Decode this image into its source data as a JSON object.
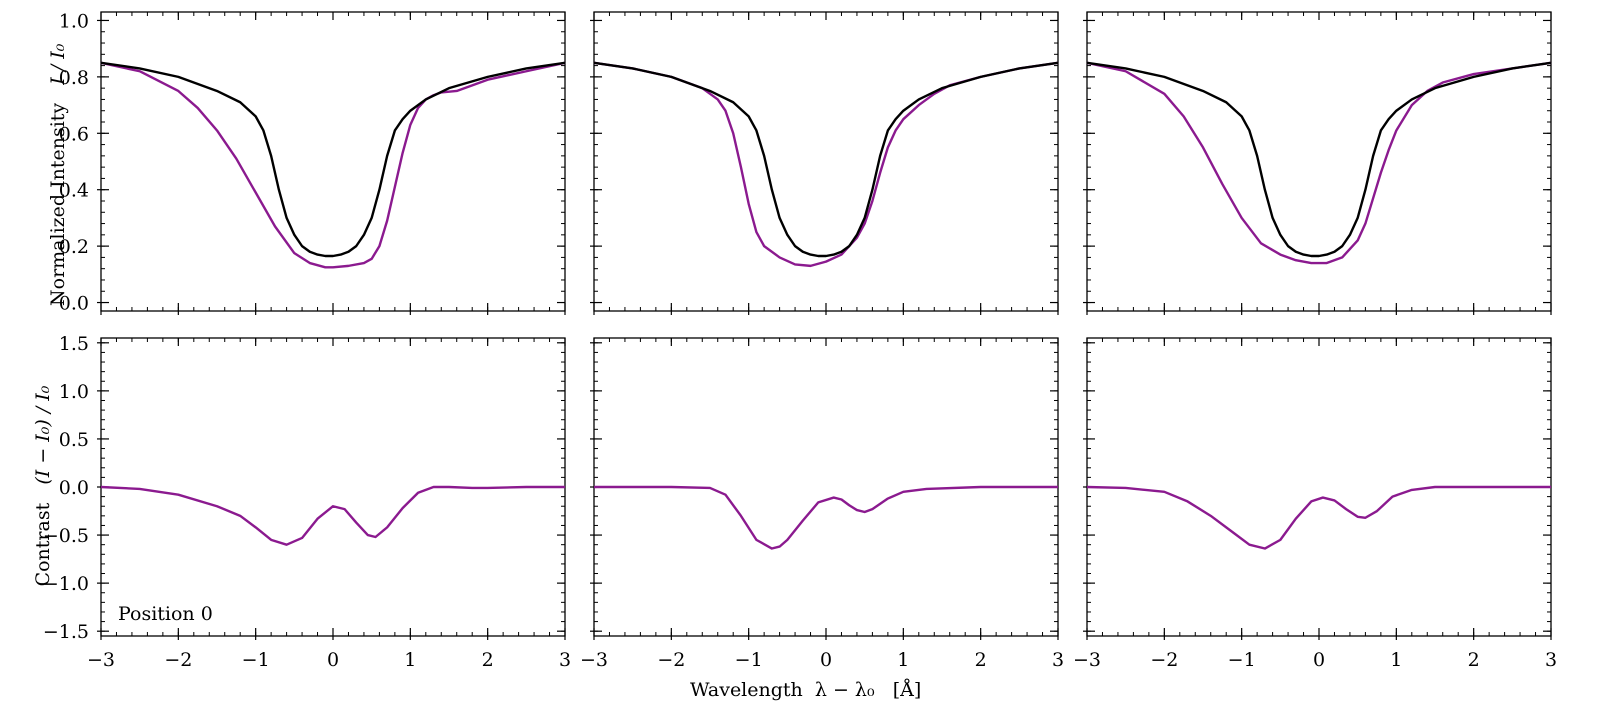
{
  "figure": {
    "top_ylabel_text": "Normalized Intensity",
    "top_ylabel_math": "I / I₀",
    "bottom_ylabel_text": "Contrast",
    "bottom_ylabel_math": "(I − I₀) / I₀",
    "xlabel_text": "Wavelength",
    "xlabel_math": "λ − λ₀",
    "xlabel_unit": "[Å]",
    "annotation": "Position 0"
  },
  "colors": {
    "reference": "#000000",
    "profile": "#8b1a8f"
  },
  "chart_data": {
    "type": "line",
    "x_ticks": [
      "−3",
      "−2",
      "−1",
      "0",
      "1",
      "2",
      "3"
    ],
    "x_tick_values": [
      -3,
      -2,
      -1,
      0,
      1,
      2,
      3
    ],
    "xlim": [
      -3,
      3
    ],
    "top_row": {
      "ylim": [
        -0.03,
        1.03
      ],
      "y_ticks": [
        "0.0",
        "0.2",
        "0.4",
        "0.6",
        "0.8",
        "1.0"
      ],
      "y_tick_values": [
        0.0,
        0.2,
        0.4,
        0.6,
        0.8,
        1.0
      ]
    },
    "bottom_row": {
      "ylim": [
        -1.55,
        1.55
      ],
      "y_ticks": [
        "−1.5",
        "−1.0",
        "−0.5",
        "0.0",
        "0.5",
        "1.0",
        "1.5"
      ],
      "y_tick_values": [
        -1.5,
        -1.0,
        -0.5,
        0.0,
        0.5,
        1.0,
        1.5
      ]
    },
    "reference_profile": {
      "x": [
        -3,
        -2.5,
        -2,
        -1.5,
        -1.2,
        -1,
        -0.9,
        -0.8,
        -0.7,
        -0.6,
        -0.5,
        -0.4,
        -0.3,
        -0.2,
        -0.1,
        0,
        0.1,
        0.2,
        0.3,
        0.4,
        0.5,
        0.6,
        0.7,
        0.8,
        0.9,
        1,
        1.2,
        1.5,
        2,
        2.5,
        3
      ],
      "y": [
        0.85,
        0.83,
        0.8,
        0.75,
        0.71,
        0.66,
        0.61,
        0.52,
        0.4,
        0.3,
        0.24,
        0.2,
        0.18,
        0.17,
        0.165,
        0.165,
        0.17,
        0.18,
        0.2,
        0.24,
        0.3,
        0.4,
        0.52,
        0.61,
        0.65,
        0.68,
        0.72,
        0.76,
        0.8,
        0.83,
        0.85
      ]
    },
    "panels": [
      {
        "intensity": {
          "x": [
            -3,
            -2.5,
            -2,
            -1.75,
            -1.5,
            -1.25,
            -1,
            -0.75,
            -0.5,
            -0.3,
            -0.1,
            0,
            0.2,
            0.4,
            0.5,
            0.6,
            0.7,
            0.8,
            0.9,
            1,
            1.1,
            1.2,
            1.3,
            1.4,
            1.6,
            2,
            2.5,
            3
          ],
          "y": [
            0.85,
            0.82,
            0.75,
            0.69,
            0.61,
            0.51,
            0.39,
            0.27,
            0.175,
            0.14,
            0.125,
            0.125,
            0.13,
            0.14,
            0.155,
            0.2,
            0.29,
            0.41,
            0.53,
            0.63,
            0.69,
            0.72,
            0.735,
            0.745,
            0.75,
            0.79,
            0.82,
            0.85
          ]
        },
        "contrast": {
          "x": [
            -3,
            -2.5,
            -2,
            -1.5,
            -1.2,
            -1,
            -0.8,
            -0.6,
            -0.4,
            -0.2,
            0,
            0.15,
            0.3,
            0.45,
            0.55,
            0.7,
            0.9,
            1.1,
            1.3,
            1.5,
            1.8,
            2,
            2.5,
            3
          ],
          "y": [
            0,
            -0.02,
            -0.08,
            -0.2,
            -0.3,
            -0.42,
            -0.55,
            -0.6,
            -0.53,
            -0.33,
            -0.2,
            -0.23,
            -0.37,
            -0.5,
            -0.52,
            -0.42,
            -0.22,
            -0.06,
            0,
            0,
            -0.01,
            -0.01,
            0,
            0
          ]
        }
      },
      {
        "intensity": {
          "x": [
            -3,
            -2.5,
            -2,
            -1.6,
            -1.4,
            -1.3,
            -1.2,
            -1.1,
            -1,
            -0.9,
            -0.8,
            -0.6,
            -0.4,
            -0.2,
            0,
            0.2,
            0.4,
            0.5,
            0.6,
            0.7,
            0.8,
            0.9,
            1,
            1.2,
            1.4,
            1.6,
            2,
            2.5,
            3
          ],
          "y": [
            0.85,
            0.83,
            0.8,
            0.76,
            0.72,
            0.68,
            0.6,
            0.48,
            0.35,
            0.25,
            0.2,
            0.16,
            0.135,
            0.13,
            0.145,
            0.17,
            0.23,
            0.28,
            0.36,
            0.46,
            0.55,
            0.61,
            0.65,
            0.7,
            0.74,
            0.77,
            0.8,
            0.83,
            0.85
          ]
        },
        "contrast": {
          "x": [
            -3,
            -2,
            -1.5,
            -1.3,
            -1.1,
            -0.9,
            -0.7,
            -0.6,
            -0.5,
            -0.3,
            -0.1,
            0.1,
            0.2,
            0.3,
            0.4,
            0.5,
            0.6,
            0.8,
            1,
            1.3,
            2,
            3
          ],
          "y": [
            0,
            0,
            -0.01,
            -0.08,
            -0.3,
            -0.55,
            -0.64,
            -0.62,
            -0.55,
            -0.35,
            -0.16,
            -0.11,
            -0.13,
            -0.19,
            -0.24,
            -0.26,
            -0.23,
            -0.12,
            -0.05,
            -0.02,
            0,
            0
          ]
        }
      },
      {
        "intensity": {
          "x": [
            -3,
            -2.5,
            -2,
            -1.75,
            -1.5,
            -1.25,
            -1,
            -0.75,
            -0.5,
            -0.3,
            -0.1,
            0.1,
            0.3,
            0.5,
            0.6,
            0.7,
            0.8,
            0.9,
            1,
            1.2,
            1.4,
            1.6,
            2,
            2.5,
            3
          ],
          "y": [
            0.85,
            0.82,
            0.74,
            0.66,
            0.55,
            0.42,
            0.3,
            0.21,
            0.17,
            0.15,
            0.14,
            0.14,
            0.16,
            0.22,
            0.28,
            0.37,
            0.46,
            0.54,
            0.61,
            0.7,
            0.75,
            0.78,
            0.81,
            0.83,
            0.85
          ]
        },
        "contrast": {
          "x": [
            -3,
            -2.5,
            -2,
            -1.7,
            -1.4,
            -1.1,
            -0.9,
            -0.7,
            -0.5,
            -0.3,
            -0.1,
            0.05,
            0.2,
            0.35,
            0.5,
            0.6,
            0.75,
            0.95,
            1.2,
            1.5,
            2,
            3
          ],
          "y": [
            0,
            -0.01,
            -0.05,
            -0.15,
            -0.3,
            -0.48,
            -0.6,
            -0.64,
            -0.55,
            -0.33,
            -0.15,
            -0.11,
            -0.14,
            -0.23,
            -0.31,
            -0.32,
            -0.25,
            -0.1,
            -0.03,
            0,
            0,
            0
          ]
        }
      }
    ]
  }
}
